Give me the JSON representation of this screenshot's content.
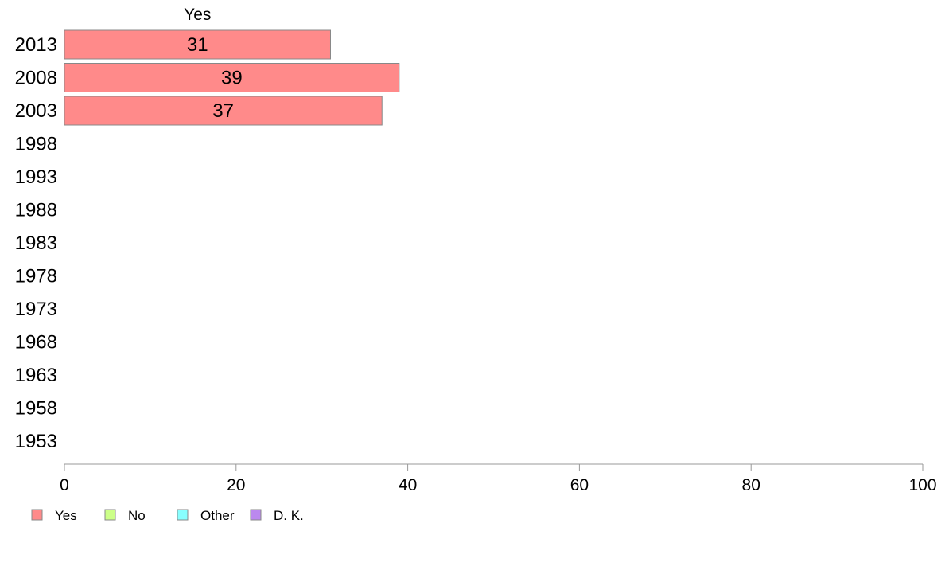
{
  "chart_data": {
    "type": "bar",
    "orientation": "horizontal",
    "stacked": true,
    "categories": [
      "2013",
      "2008",
      "2003",
      "1998",
      "1993",
      "1988",
      "1983",
      "1978",
      "1973",
      "1968",
      "1963",
      "1958",
      "1953"
    ],
    "series": [
      {
        "name": "Yes",
        "color": "#ff8a8a",
        "values": [
          31,
          39,
          37,
          null,
          null,
          null,
          null,
          null,
          null,
          null,
          null,
          null,
          null
        ]
      },
      {
        "name": "No",
        "color": "#ccff88",
        "values": [
          null,
          null,
          null,
          null,
          null,
          null,
          null,
          null,
          null,
          null,
          null,
          null,
          null
        ]
      },
      {
        "name": "Other",
        "color": "#88ffff",
        "values": [
          null,
          null,
          null,
          null,
          null,
          null,
          null,
          null,
          null,
          null,
          null,
          null,
          null
        ]
      },
      {
        "name": "D. K.",
        "color": "#bb88ee",
        "values": [
          null,
          null,
          null,
          null,
          null,
          null,
          null,
          null,
          null,
          null,
          null,
          null,
          null
        ]
      }
    ],
    "series_header": "Yes",
    "xlim": [
      0,
      100
    ],
    "xticks": [
      0,
      20,
      40,
      60,
      80,
      100
    ],
    "grid": false,
    "legend_position": "bottom-left"
  }
}
